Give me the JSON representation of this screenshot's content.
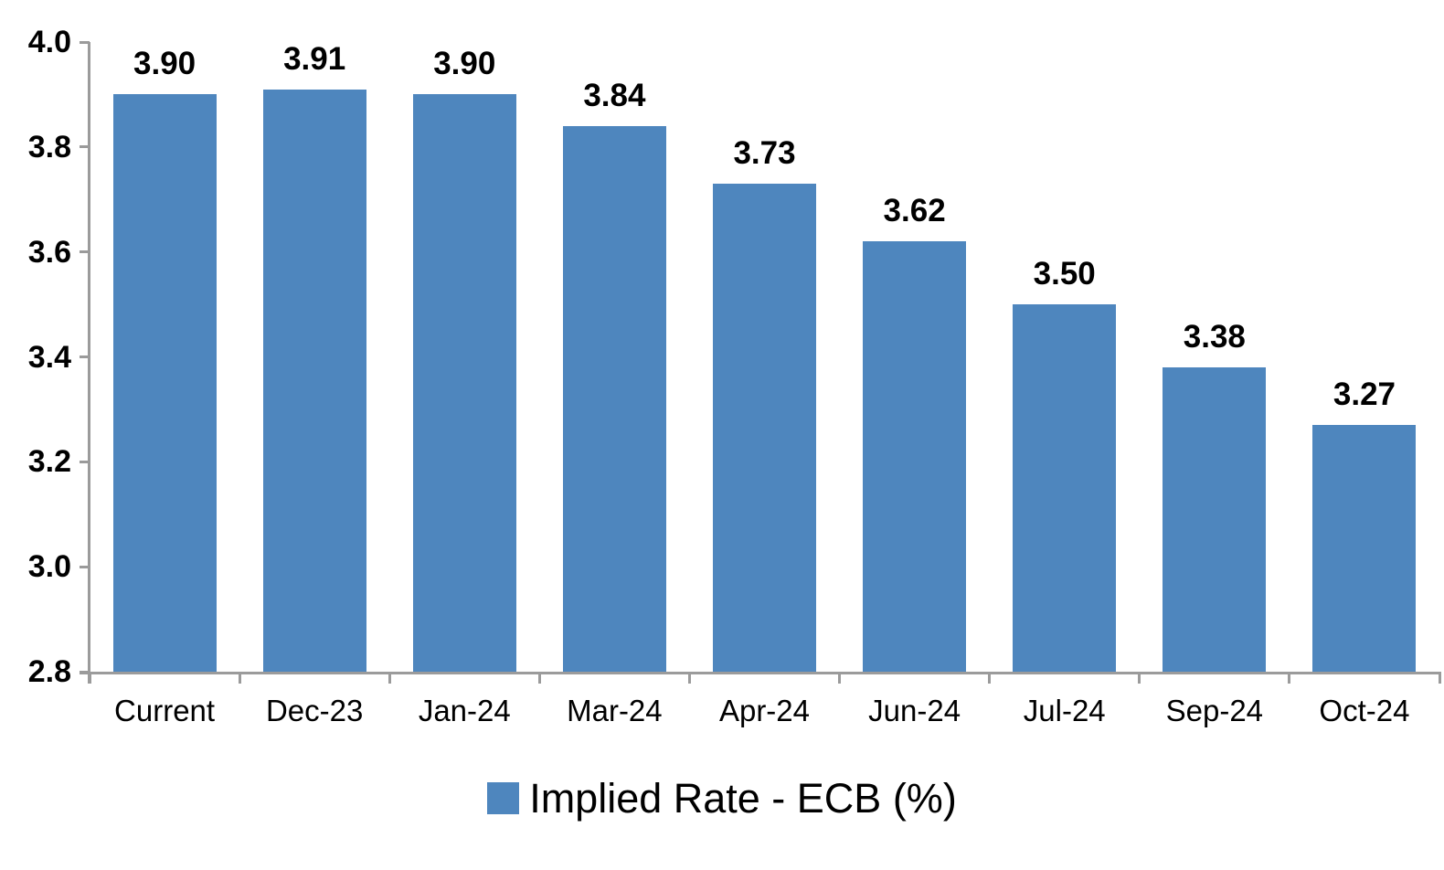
{
  "chart_data": {
    "type": "bar",
    "title": "",
    "categories": [
      "Current",
      "Dec-23",
      "Jan-24",
      "Mar-24",
      "Apr-24",
      "Jun-24",
      "Jul-24",
      "Sep-24",
      "Oct-24"
    ],
    "values": [
      3.9,
      3.91,
      3.9,
      3.84,
      3.73,
      3.62,
      3.5,
      3.38,
      3.27
    ],
    "data_labels": [
      "3.90",
      "3.91",
      "3.90",
      "3.84",
      "3.73",
      "3.62",
      "3.50",
      "3.38",
      "3.27"
    ],
    "series_name": "Implied Rate - ECB (%)",
    "legend": "Implied Rate - ECB (%)",
    "legend_position": "bottom",
    "xlabel": "",
    "ylabel": "",
    "ylim": [
      2.8,
      4.0
    ],
    "ytick_step": 0.2,
    "ytick_labels": [
      "4.0",
      "3.8",
      "3.6",
      "3.4",
      "3.2",
      "3.0",
      "2.8"
    ],
    "grid": false,
    "bar_color": "#4E86BE",
    "axis_color": "#9B9B9B",
    "text_color": "#000000"
  }
}
